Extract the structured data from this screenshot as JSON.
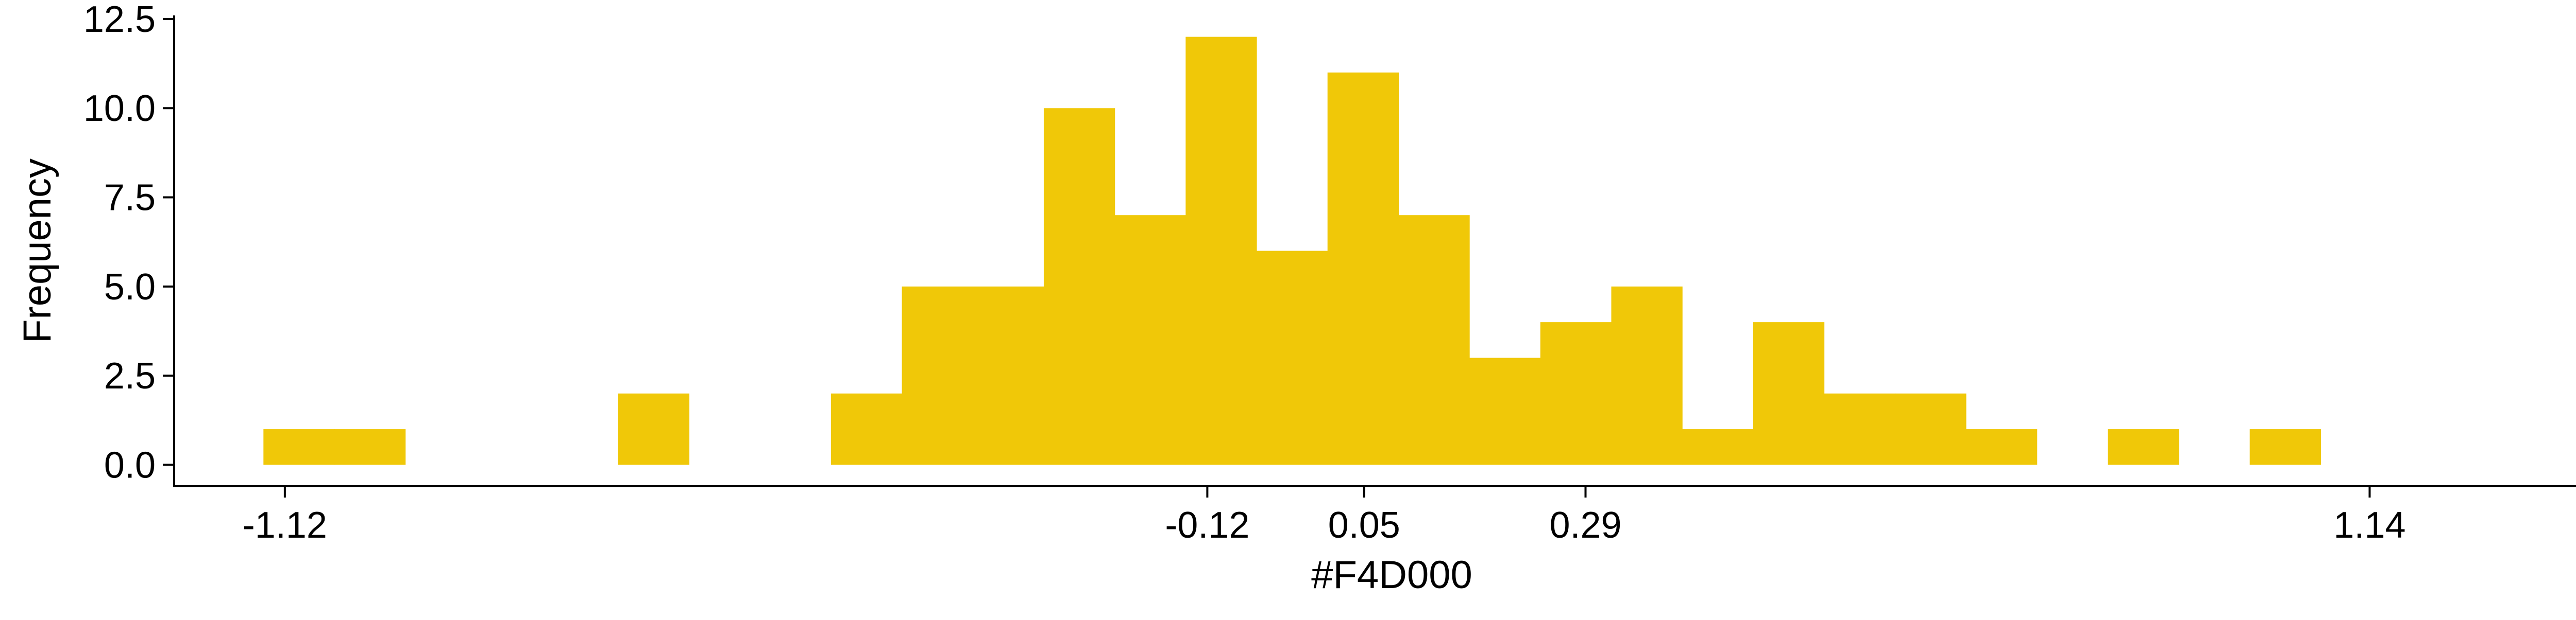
{
  "chart_data": {
    "type": "bar",
    "title": "",
    "xlabel": "#F4D000",
    "ylabel": "Frequency",
    "bar_color": "#F0C808",
    "axis_color": "#000000",
    "background": "#FFFFFF",
    "grid": false,
    "legend": "none",
    "xlim": [
      -1.24,
      1.4
    ],
    "ylim": [
      -0.6,
      12.6
    ],
    "bin_width": 0.0769,
    "bins": [
      {
        "x0": -1.1432,
        "x1": -1.0663,
        "count": 1
      },
      {
        "x0": -1.0663,
        "x1": -0.9894,
        "count": 1
      },
      {
        "x0": -0.7587,
        "x1": -0.6818,
        "count": 2
      },
      {
        "x0": -0.528,
        "x1": -0.4511,
        "count": 2
      },
      {
        "x0": -0.4511,
        "x1": -0.3742,
        "count": 5
      },
      {
        "x0": -0.3742,
        "x1": -0.2973,
        "count": 5
      },
      {
        "x0": -0.2973,
        "x1": -0.2204,
        "count": 10
      },
      {
        "x0": -0.2204,
        "x1": -0.1435,
        "count": 7
      },
      {
        "x0": -0.1435,
        "x1": -0.0666,
        "count": 12
      },
      {
        "x0": -0.0666,
        "x1": 0.0103,
        "count": 6
      },
      {
        "x0": 0.0103,
        "x1": 0.0872,
        "count": 11
      },
      {
        "x0": 0.0872,
        "x1": 0.1641,
        "count": 7
      },
      {
        "x0": 0.1641,
        "x1": 0.241,
        "count": 3
      },
      {
        "x0": 0.241,
        "x1": 0.3179,
        "count": 4
      },
      {
        "x0": 0.3179,
        "x1": 0.3948,
        "count": 5
      },
      {
        "x0": 0.3948,
        "x1": 0.4717,
        "count": 1
      },
      {
        "x0": 0.4717,
        "x1": 0.5486,
        "count": 4
      },
      {
        "x0": 0.5486,
        "x1": 0.6255,
        "count": 2
      },
      {
        "x0": 0.6255,
        "x1": 0.7024,
        "count": 2
      },
      {
        "x0": 0.7024,
        "x1": 0.7793,
        "count": 1
      },
      {
        "x0": 0.8562,
        "x1": 0.9331,
        "count": 1
      },
      {
        "x0": 1.01,
        "x1": 1.0869,
        "count": 1
      }
    ],
    "x_ticks": [
      {
        "value": -1.12,
        "label": "-1.12"
      },
      {
        "value": -0.12,
        "label": "-0.12"
      },
      {
        "value": 0.05,
        "label": "0.05"
      },
      {
        "value": 0.29,
        "label": "0.29"
      },
      {
        "value": 1.14,
        "label": "1.14"
      }
    ],
    "y_ticks": [
      {
        "value": 0.0,
        "label": "0.0"
      },
      {
        "value": 2.5,
        "label": "2.5"
      },
      {
        "value": 5.0,
        "label": "5.0"
      },
      {
        "value": 7.5,
        "label": "7.5"
      },
      {
        "value": 10.0,
        "label": "10.0"
      },
      {
        "value": 12.5,
        "label": "12.5"
      }
    ]
  }
}
